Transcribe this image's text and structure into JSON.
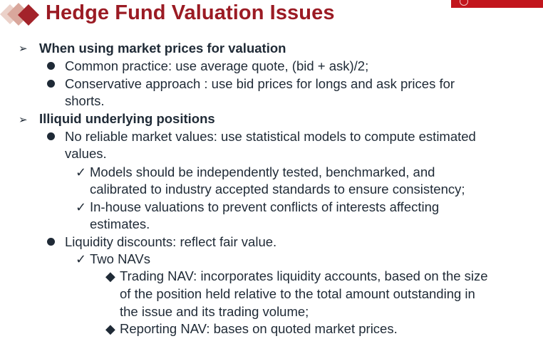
{
  "slide": {
    "title": "Hedge Fund Valuation Issues",
    "colors": {
      "title": "#9b1b24",
      "logo_bar": "#c2151c",
      "text": "#1f2a36"
    },
    "icons": {
      "title_deco": "diamond-cluster-icon",
      "logo": "university-seal-icon",
      "arrow": "arrow-bullet-icon",
      "dot": "filled-circle-bullet-icon",
      "check": "check-mark-icon",
      "diamond": "diamond-bullet-icon"
    },
    "markers": {
      "arrow": "➢",
      "check": "✓",
      "diamond": "◆"
    },
    "sections": [
      {
        "heading": "When using market prices for valuation",
        "bullets": [
          {
            "lines": [
              "Common practice: use average quote, (bid + ask)/2;"
            ]
          },
          {
            "lines": [
              "Conservative approach : use bid prices for longs and ask prices for",
              "shorts."
            ]
          }
        ]
      },
      {
        "heading": "Illiquid underlying positions",
        "bullets": [
          {
            "lines": [
              "No reliable market values: use statistical models to compute estimated",
              "values."
            ],
            "checks": [
              {
                "lines": [
                  "Models should be independently tested, benchmarked, and",
                  "calibrated to industry accepted standards to ensure consistency;"
                ]
              },
              {
                "lines": [
                  "In-house valuations to prevent conflicts of interests affecting",
                  "estimates."
                ]
              }
            ]
          },
          {
            "lines": [
              "Liquidity discounts: reflect fair value."
            ],
            "checks": [
              {
                "lines": [
                  "Two NAVs"
                ],
                "diamonds": [
                  {
                    "lines": [
                      "Trading NAV: incorporates liquidity accounts, based on the size",
                      "of the position held relative to the total amount outstanding in",
                      "the issue and its trading volume;"
                    ]
                  },
                  {
                    "lines": [
                      "Reporting NAV: bases on quoted market prices."
                    ]
                  }
                ]
              }
            ]
          }
        ]
      }
    ]
  }
}
